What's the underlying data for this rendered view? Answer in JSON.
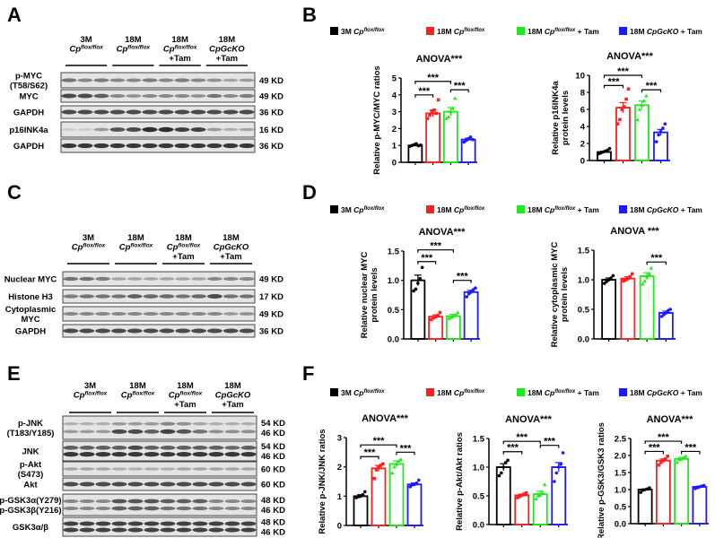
{
  "panel_letters": [
    "A",
    "B",
    "C",
    "D",
    "E",
    "F"
  ],
  "groups": [
    {
      "age": "3M",
      "gene": "Cp",
      "sup": "flox/flox",
      "tam": ""
    },
    {
      "age": "18M",
      "gene": "Cp",
      "sup": "flox/flox",
      "tam": ""
    },
    {
      "age": "18M",
      "gene": "Cp",
      "sup": "flox/flox",
      "tam": "+Tam"
    },
    {
      "age": "18M",
      "gene": "CpGcKO",
      "sup": "",
      "tam": "+Tam"
    }
  ],
  "legend": [
    {
      "age": "3M ",
      "gene": "Cp",
      "sup": "flox/flox",
      "suffix": "",
      "color": "#000000"
    },
    {
      "age": "18M ",
      "gene": "Cp",
      "sup": "flox/flox",
      "suffix": "",
      "color": "#ff1f1f"
    },
    {
      "age": "18M ",
      "gene": "Cp",
      "sup": "flox/flox",
      "suffix": " + Tam",
      "color": "#22e822"
    },
    {
      "age": "18M ",
      "gene": "CpGcKO",
      "sup": "",
      "suffix": " + Tam",
      "color": "#1a1aff"
    }
  ],
  "blots": [
    {
      "panel": "A",
      "rows": [
        {
          "label": [
            "p-MYC",
            "(T58/S62)"
          ],
          "kd": [
            "49 KD"
          ]
        },
        {
          "label": [
            "MYC"
          ],
          "kd": [
            "49 KD"
          ]
        },
        {
          "label": [
            "GAPDH"
          ],
          "kd": [
            "36 KD"
          ]
        },
        {
          "label": [
            "p16INK4a"
          ],
          "kd": [
            "16 KD"
          ]
        },
        {
          "label": [
            "GAPDH"
          ],
          "kd": [
            "36 KD"
          ]
        }
      ]
    },
    {
      "panel": "C",
      "rows": [
        {
          "label": [
            "Nuclear MYC"
          ],
          "kd": [
            "49 KD"
          ]
        },
        {
          "label": [
            "Histone H3"
          ],
          "kd": [
            "17 KD"
          ]
        },
        {
          "label": [
            "Cytoplasmic",
            "MYC"
          ],
          "kd": [
            "49 KD"
          ]
        },
        {
          "label": [
            "GAPDH"
          ],
          "kd": [
            "36 KD"
          ]
        }
      ]
    },
    {
      "panel": "E",
      "rows": [
        {
          "label": [
            "p-JNK",
            "(T183/Y185)"
          ],
          "kd": [
            "54 KD",
            "46 KD"
          ]
        },
        {
          "label": [
            "JNK"
          ],
          "kd": [
            "54 KD",
            "46 KD"
          ]
        },
        {
          "label": [
            "p-Akt",
            "(S473)"
          ],
          "kd": [
            "60 KD"
          ]
        },
        {
          "label": [
            "Akt"
          ],
          "kd": [
            "60 KD"
          ]
        },
        {
          "label": [
            "p-GSK3α(Y279)",
            "p-GSK3β(Y216)"
          ],
          "kd": [
            "48 KD",
            "46 KD"
          ]
        },
        {
          "label": [
            "GSK3α/β"
          ],
          "kd": [
            "48 KD",
            "46 KD"
          ]
        }
      ]
    }
  ],
  "chart_data": [
    {
      "panel": "B",
      "type": "bar",
      "title": "ANOVA***",
      "ylabel": [
        "Relative p-MYC/MYC ratios"
      ],
      "ylim": [
        0,
        5
      ],
      "yticks": [
        "0",
        "1",
        "2",
        "3",
        "4",
        "5"
      ],
      "values": [
        1.0,
        2.9,
        3.0,
        1.35
      ],
      "sem": [
        0.05,
        0.2,
        0.25,
        0.08
      ],
      "points": [
        [
          0.95,
          1.0,
          1.05,
          1.1,
          0.98,
          1.02
        ],
        [
          2.6,
          2.8,
          3.0,
          3.1,
          2.9,
          3.7
        ],
        [
          2.6,
          2.7,
          3.0,
          3.2,
          3.8
        ],
        [
          1.2,
          1.3,
          1.4,
          1.5,
          1.35
        ]
      ],
      "brackets": [
        {
          "from": 0,
          "to": 1,
          "y": 4.0,
          "label": "***"
        },
        {
          "from": 0,
          "to": 2,
          "y": 4.8,
          "label": "***"
        },
        {
          "from": 2,
          "to": 3,
          "y": 4.3,
          "label": "***"
        }
      ]
    },
    {
      "panel": "B",
      "type": "bar",
      "title": "ANOVA***",
      "ylabel": [
        "Relative p16INK4a",
        "protein levels"
      ],
      "ylim": [
        0,
        10
      ],
      "yticks": [
        "0",
        "2",
        "4",
        "6",
        "8",
        "10"
      ],
      "values": [
        1.0,
        6.2,
        6.5,
        3.3
      ],
      "sem": [
        0.1,
        0.6,
        0.5,
        0.35
      ],
      "points": [
        [
          0.8,
          0.9,
          1.0,
          1.1,
          1.2,
          1.4
        ],
        [
          4.3,
          4.8,
          6.0,
          6.3,
          7.2,
          8.4
        ],
        [
          4.8,
          6.0,
          6.5,
          7.0,
          7.6
        ],
        [
          2.2,
          3.0,
          3.4,
          3.8,
          4.3
        ]
      ],
      "brackets": [
        {
          "from": 0,
          "to": 1,
          "y": 8.8,
          "label": "***"
        },
        {
          "from": 0,
          "to": 2,
          "y": 10.0,
          "label": "***"
        },
        {
          "from": 2,
          "to": 3,
          "y": 8.3,
          "label": "***"
        }
      ]
    },
    {
      "panel": "D",
      "type": "bar",
      "title": "ANOVA***",
      "ylabel": [
        "Relative nuclear MYC",
        "protein levels"
      ],
      "ylim": [
        0,
        1.5
      ],
      "yticks": [
        "0.0",
        "0.5",
        "1.0",
        "1.5"
      ],
      "values": [
        1.0,
        0.38,
        0.39,
        0.8
      ],
      "sem": [
        0.09,
        0.03,
        0.03,
        0.03
      ],
      "points": [
        [
          0.82,
          0.85,
          0.95,
          1.03,
          1.22
        ],
        [
          0.33,
          0.36,
          0.38,
          0.4,
          0.45
        ],
        [
          0.35,
          0.37,
          0.39,
          0.41,
          0.45
        ],
        [
          0.72,
          0.77,
          0.8,
          0.84,
          0.87
        ]
      ],
      "brackets": [
        {
          "from": 0,
          "to": 1,
          "y": 1.32,
          "label": "***"
        },
        {
          "from": 0,
          "to": 2,
          "y": 1.52,
          "label": "***"
        },
        {
          "from": 2,
          "to": 3,
          "y": 1.0,
          "label": "***"
        }
      ]
    },
    {
      "panel": "D",
      "type": "bar",
      "title": "ANOVA ***",
      "ylabel": [
        "Relative cytoplasmic MYC",
        "protein levels"
      ],
      "ylim": [
        0,
        1.5
      ],
      "yticks": [
        "0.0",
        "0.5",
        "1.0",
        "1.5"
      ],
      "values": [
        1.0,
        1.02,
        1.06,
        0.44
      ],
      "sem": [
        0.03,
        0.03,
        0.06,
        0.03
      ],
      "points": [
        [
          0.94,
          0.97,
          1.0,
          1.03,
          1.07
        ],
        [
          0.98,
          1.0,
          1.02,
          1.05,
          1.1
        ],
        [
          0.93,
          0.98,
          1.05,
          1.1,
          1.2
        ],
        [
          0.38,
          0.41,
          0.44,
          0.48,
          0.5
        ]
      ],
      "brackets": [
        {
          "from": 2,
          "to": 3,
          "y": 1.3,
          "label": "***"
        }
      ]
    },
    {
      "panel": "F",
      "type": "bar",
      "title": "ANOVA***",
      "ylabel": [
        "Relative p-JNK/JNK ratios"
      ],
      "ylim": [
        0,
        3
      ],
      "yticks": [
        "0",
        "1",
        "2",
        "3"
      ],
      "values": [
        1.0,
        1.95,
        2.1,
        1.4
      ],
      "sem": [
        0.05,
        0.1,
        0.1,
        0.05
      ],
      "points": [
        [
          0.95,
          0.98,
          1.0,
          1.05,
          1.15
        ],
        [
          1.6,
          1.9,
          2.0,
          2.05,
          2.1
        ],
        [
          1.8,
          2.0,
          2.1,
          2.2,
          2.25
        ],
        [
          1.32,
          1.38,
          1.4,
          1.45,
          1.55
        ]
      ],
      "brackets": [
        {
          "from": 0,
          "to": 1,
          "y": 2.35,
          "label": "***"
        },
        {
          "from": 0,
          "to": 2,
          "y": 2.75,
          "label": "***"
        },
        {
          "from": 2,
          "to": 3,
          "y": 2.5,
          "label": "***"
        }
      ]
    },
    {
      "panel": "F",
      "type": "bar",
      "title": "ANOVA***",
      "ylabel": [
        "Relative p-Akt/Akt ratios"
      ],
      "ylim": [
        0,
        1.5
      ],
      "yticks": [
        "0.0",
        "0.5",
        "1.0",
        "1.5"
      ],
      "values": [
        1.0,
        0.51,
        0.53,
        1.0
      ],
      "sem": [
        0.06,
        0.02,
        0.05,
        0.08
      ],
      "points": [
        [
          0.85,
          0.9,
          1.0,
          1.08,
          1.12
        ],
        [
          0.47,
          0.49,
          0.51,
          0.53,
          0.55
        ],
        [
          0.45,
          0.5,
          0.52,
          0.55,
          0.7
        ],
        [
          0.75,
          0.9,
          1.0,
          1.05,
          1.25
        ]
      ],
      "brackets": [
        {
          "from": 0,
          "to": 1,
          "y": 1.27,
          "label": "***"
        },
        {
          "from": 0,
          "to": 2,
          "y": 1.45,
          "label": "***"
        },
        {
          "from": 2,
          "to": 3,
          "y": 1.38,
          "label": "***"
        }
      ]
    },
    {
      "panel": "F",
      "type": "bar",
      "title": "ANOVA***",
      "ylabel": [
        "Relative p-GSK3/GSK3 ratios"
      ],
      "ylim": [
        0,
        2.5
      ],
      "yticks": [
        "0.0",
        "0.5",
        "1.0",
        "1.5",
        "2.0",
        "2.5"
      ],
      "values": [
        1.0,
        1.85,
        1.9,
        1.08
      ],
      "sem": [
        0.02,
        0.05,
        0.04,
        0.02
      ],
      "points": [
        [
          0.92,
          0.98,
          1.0,
          1.02,
          1.05
        ],
        [
          1.72,
          1.8,
          1.85,
          1.9,
          1.98
        ],
        [
          1.8,
          1.88,
          1.9,
          1.95,
          1.98
        ],
        [
          1.03,
          1.06,
          1.08,
          1.1,
          1.12
        ]
      ],
      "brackets": [
        {
          "from": 0,
          "to": 1,
          "y": 2.12,
          "label": "***"
        },
        {
          "from": 0,
          "to": 2,
          "y": 2.42,
          "label": "***"
        },
        {
          "from": 2,
          "to": 3,
          "y": 2.12,
          "label": "***"
        }
      ]
    }
  ],
  "colors": {
    "groups": [
      "#000000",
      "#ff1f1f",
      "#22e822",
      "#1a1aff"
    ],
    "markers": [
      "circle",
      "square",
      "triangle",
      "circle"
    ]
  }
}
